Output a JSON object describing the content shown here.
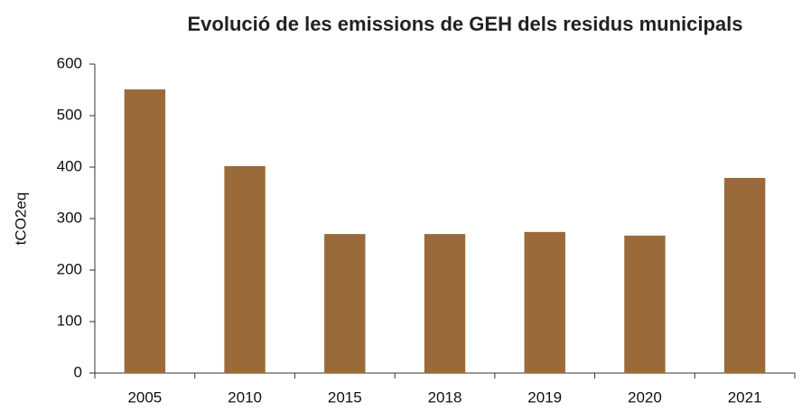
{
  "chart_data": {
    "type": "bar",
    "title": "Evolució de les emissions de GEH dels residus municipals",
    "y_label": "tCO2eq",
    "categories": [
      "2005",
      "2010",
      "2015",
      "2018",
      "2019",
      "2020",
      "2021"
    ],
    "values": [
      551,
      402,
      270,
      270,
      274,
      267,
      379
    ],
    "color": "#9b6a3b",
    "ylim": [
      0,
      600
    ],
    "yticks": [
      0,
      100,
      200,
      300,
      400,
      500,
      600
    ],
    "grid": false
  }
}
